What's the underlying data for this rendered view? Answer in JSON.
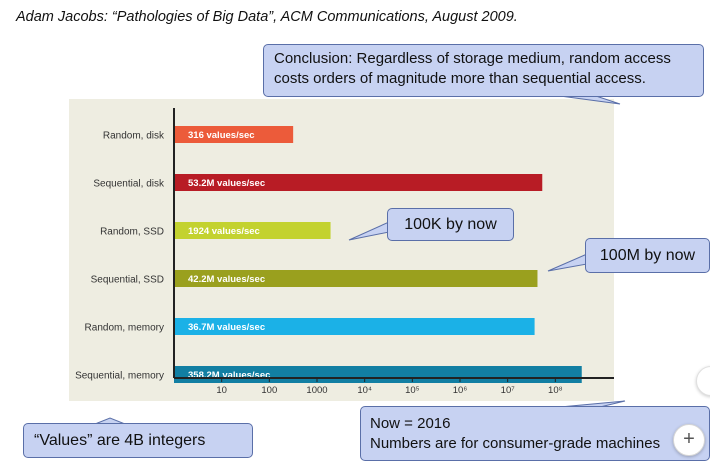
{
  "citation": "Adam Jacobs: “Pathologies of Big Data”, ACM Communications, August 2009.",
  "callouts": {
    "conclusion": "Conclusion: Regardless of storage medium, random access costs orders of magnitude more than sequential access.",
    "random_ssd_note": "100K by now",
    "sequential_ssd_note": "100M by now",
    "values_note": "“Values” are 4B integers",
    "now_line1": "Now = 2016",
    "now_line2": "Numbers are for consumer-grade machines"
  },
  "controls": {
    "add_label": "+"
  },
  "colors": {
    "chart_background": "#eeede1",
    "callout_fill": "#c7d2f2",
    "callout_border": "#5a6fa8"
  },
  "chart_data": {
    "type": "bar",
    "orientation": "horizontal",
    "x_scale": "log",
    "xlim": [
      1,
      1000000000
    ],
    "x_ticks": [
      {
        "value": 10,
        "label": "10"
      },
      {
        "value": 100,
        "label": "100"
      },
      {
        "value": 1000,
        "label": "1000"
      },
      {
        "value": 10000,
        "label": "10⁴"
      },
      {
        "value": 100000,
        "label": "10⁵"
      },
      {
        "value": 1000000,
        "label": "10⁶"
      },
      {
        "value": 10000000,
        "label": "10⁷"
      },
      {
        "value": 100000000,
        "label": "10⁸"
      }
    ],
    "bars": [
      {
        "category": "Random, disk",
        "value": 316,
        "label": "316 values/sec",
        "color": "#ec5b3a"
      },
      {
        "category": "Sequential, disk",
        "value": 53200000,
        "label": "53.2M values/sec",
        "color": "#b81c25"
      },
      {
        "category": "Random, SSD",
        "value": 1924,
        "label": "1924 values/sec",
        "color": "#c3d22f"
      },
      {
        "category": "Sequential, SSD",
        "value": 42200000,
        "label": "42.2M values/sec",
        "color": "#9aa01e"
      },
      {
        "category": "Random, memory",
        "value": 36700000,
        "label": "36.7M values/sec",
        "color": "#1bb1e7"
      },
      {
        "category": "Sequential, memory",
        "value": 358200000,
        "label": "358.2M values/sec",
        "color": "#127fa3"
      }
    ]
  }
}
